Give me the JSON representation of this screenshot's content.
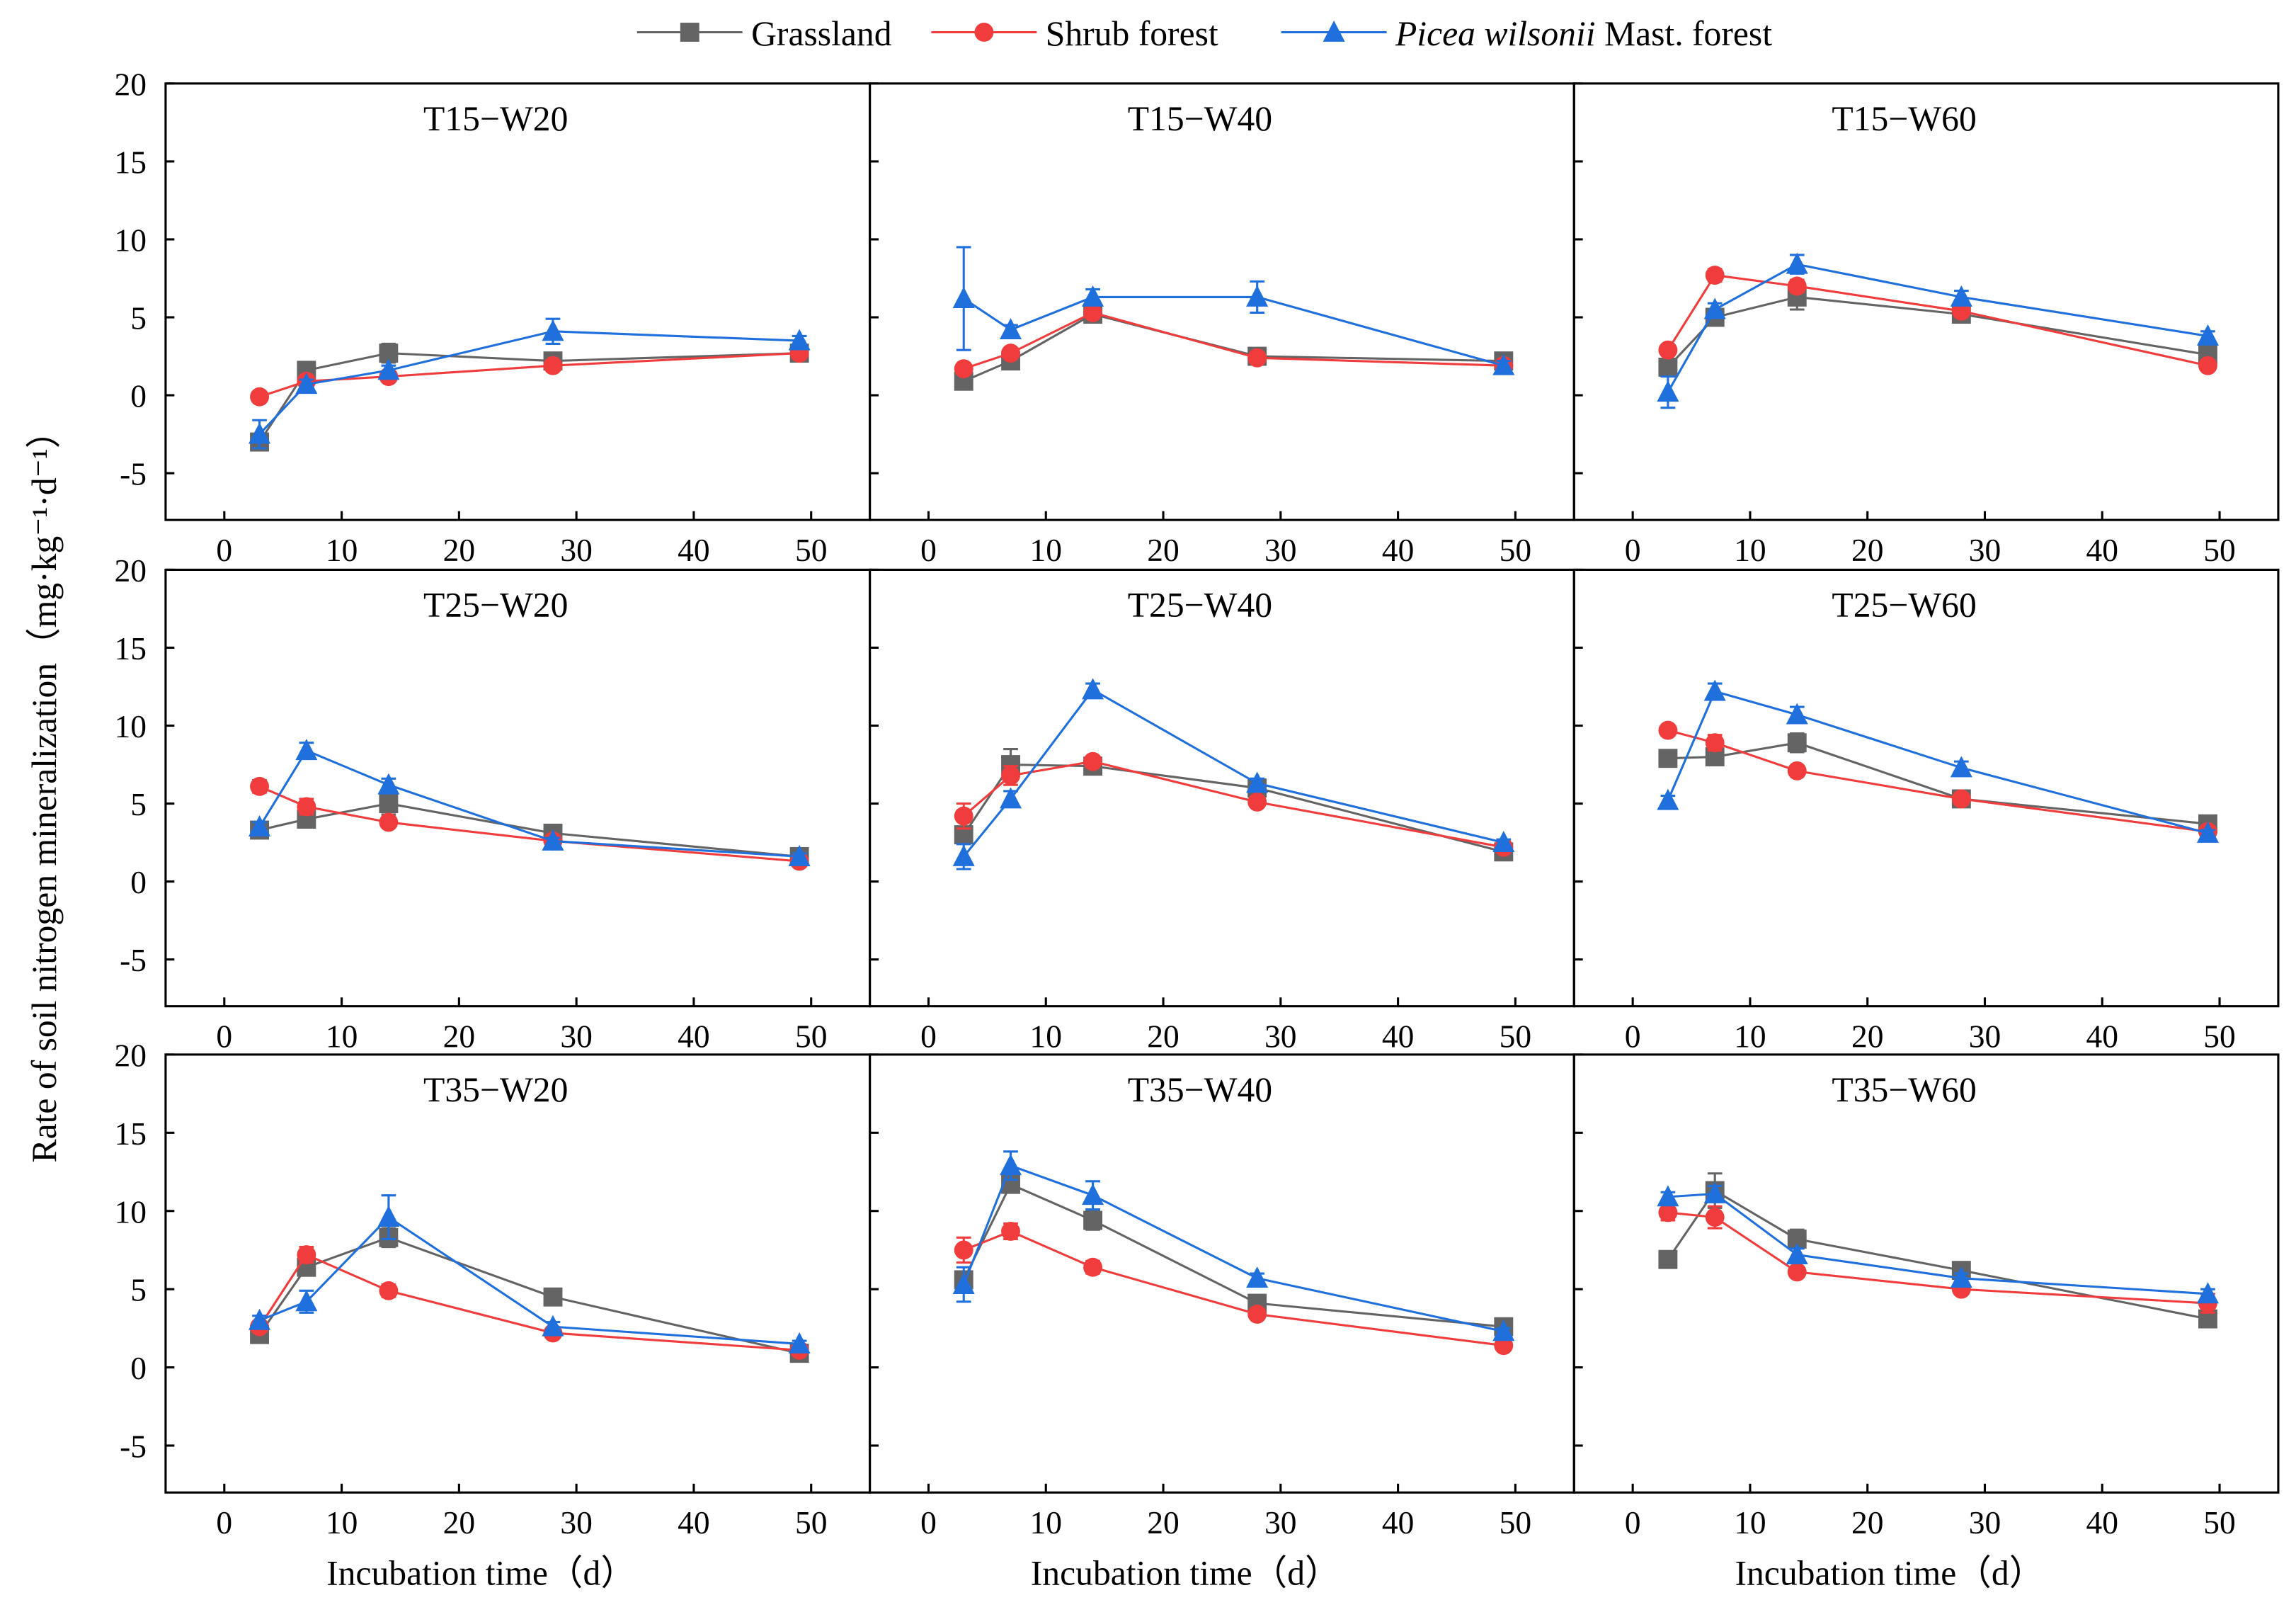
{
  "chart_data": {
    "type": "line",
    "legend": {
      "placement": "top-center",
      "entries": [
        {
          "name": "Grassland",
          "italic_part": "",
          "rest": "Grassland",
          "color": "#646464",
          "marker": "square"
        },
        {
          "name": "Shrub forest",
          "italic_part": "",
          "rest": "Shrub forest",
          "color": "#f03c3c",
          "marker": "circle"
        },
        {
          "name": "Picea wilsonii Mast. forest",
          "italic_part": "Picea wilsonii",
          "rest": " Mast. forest",
          "color": "#1f6fdc",
          "marker": "triangle"
        }
      ]
    },
    "ylabel": "Rate of soil nitrogen mineralization（mg·kg⁻¹·d⁻¹）",
    "xlabel": "Incubation time（d）",
    "xlim": [
      -5,
      55
    ],
    "ylim": [
      -8,
      20
    ],
    "xticks": [
      0,
      10,
      20,
      30,
      40,
      50
    ],
    "yticks": [
      -5,
      0,
      5,
      10,
      15,
      20
    ],
    "x": [
      3,
      7,
      14,
      28,
      49
    ],
    "panels": [
      {
        "title": "T15−W20",
        "series": [
          {
            "name": "Grassland",
            "values": [
              -3.0,
              1.6,
              2.7,
              2.2,
              2.7
            ],
            "err": [
              0.5,
              0.4,
              0.6,
              0.3,
              0.3
            ]
          },
          {
            "name": "Shrub forest",
            "values": [
              -0.1,
              0.9,
              1.2,
              1.9,
              2.7
            ],
            "err": [
              0.2,
              0.2,
              0.2,
              0.3,
              0.2
            ]
          },
          {
            "name": "Picea wilsonii Mast. forest",
            "values": [
              -2.5,
              0.7,
              1.6,
              4.1,
              3.5
            ],
            "err": [
              0.9,
              0.3,
              0.3,
              0.8,
              0.3
            ]
          }
        ]
      },
      {
        "title": "T15−W40",
        "series": [
          {
            "name": "Grassland",
            "values": [
              0.9,
              2.2,
              5.2,
              2.5,
              2.2
            ],
            "err": [
              0.2,
              0.3,
              0.3,
              0.2,
              0.3
            ]
          },
          {
            "name": "Shrub forest",
            "values": [
              1.7,
              2.7,
              5.3,
              2.4,
              1.9
            ],
            "err": [
              0.2,
              0.2,
              0.3,
              0.2,
              0.2
            ]
          },
          {
            "name": "Picea wilsonii Mast. forest",
            "values": [
              6.2,
              4.2,
              6.3,
              6.3,
              1.9
            ],
            "err": [
              3.3,
              0.3,
              0.5,
              1.0,
              0.3
            ]
          }
        ]
      },
      {
        "title": "T15−W60",
        "series": [
          {
            "name": "Grassland",
            "values": [
              1.8,
              5.0,
              6.3,
              5.2,
              2.6
            ],
            "err": [
              0.4,
              0.3,
              0.8,
              0.3,
              0.3
            ]
          },
          {
            "name": "Shrub forest",
            "values": [
              2.9,
              7.7,
              7.0,
              5.4,
              1.9
            ],
            "err": [
              0.2,
              0.4,
              0.4,
              0.3,
              0.2
            ]
          },
          {
            "name": "Picea wilsonii Mast. forest",
            "values": [
              0.2,
              5.5,
              8.4,
              6.3,
              3.8
            ],
            "err": [
              1.0,
              0.4,
              0.6,
              0.4,
              0.3
            ]
          }
        ]
      },
      {
        "title": "T25−W20",
        "series": [
          {
            "name": "Grassland",
            "values": [
              3.3,
              4.0,
              5.0,
              3.1,
              1.6
            ],
            "err": [
              0.3,
              0.3,
              0.7,
              0.3,
              0.2
            ]
          },
          {
            "name": "Shrub forest",
            "values": [
              6.1,
              4.8,
              3.8,
              2.6,
              1.3
            ],
            "err": [
              0.4,
              0.5,
              0.3,
              0.2,
              0.2
            ]
          },
          {
            "name": "Picea wilsonii Mast. forest",
            "values": [
              3.5,
              8.4,
              6.2,
              2.6,
              1.6
            ],
            "err": [
              0.3,
              0.5,
              0.4,
              0.2,
              0.2
            ]
          }
        ]
      },
      {
        "title": "T25−W40",
        "series": [
          {
            "name": "Grassland",
            "values": [
              3.0,
              7.5,
              7.4,
              6.0,
              1.9
            ],
            "err": [
              0.5,
              1.0,
              0.4,
              0.3,
              0.3
            ]
          },
          {
            "name": "Shrub forest",
            "values": [
              4.2,
              6.8,
              7.7,
              5.1,
              2.2
            ],
            "err": [
              0.8,
              0.6,
              0.3,
              0.3,
              0.3
            ]
          },
          {
            "name": "Picea wilsonii Mast. forest",
            "values": [
              1.6,
              5.3,
              12.3,
              6.3,
              2.5
            ],
            "err": [
              0.8,
              0.5,
              0.4,
              0.3,
              0.2
            ]
          }
        ]
      },
      {
        "title": "T25−W60",
        "series": [
          {
            "name": "Grassland",
            "values": [
              7.9,
              8.0,
              8.9,
              5.3,
              3.7
            ],
            "err": [
              0.5,
              0.4,
              0.6,
              0.4,
              0.3
            ]
          },
          {
            "name": "Shrub forest",
            "values": [
              9.7,
              8.9,
              7.1,
              5.3,
              3.2
            ],
            "err": [
              0.3,
              0.5,
              0.3,
              0.3,
              0.2
            ]
          },
          {
            "name": "Picea wilsonii Mast. forest",
            "values": [
              5.2,
              12.2,
              10.7,
              7.3,
              3.1
            ],
            "err": [
              0.3,
              0.5,
              0.5,
              0.4,
              0.2
            ]
          }
        ]
      },
      {
        "title": "T35−W20",
        "series": [
          {
            "name": "Grassland",
            "values": [
              2.1,
              6.4,
              8.3,
              4.5,
              0.9
            ],
            "err": [
              0.3,
              0.5,
              0.6,
              0.3,
              0.2
            ]
          },
          {
            "name": "Shrub forest",
            "values": [
              2.6,
              7.2,
              4.9,
              2.2,
              1.1
            ],
            "err": [
              0.3,
              0.5,
              0.4,
              0.2,
              0.2
            ]
          },
          {
            "name": "Picea wilsonii Mast. forest",
            "values": [
              3.0,
              4.2,
              9.6,
              2.6,
              1.5
            ],
            "err": [
              0.3,
              0.7,
              1.4,
              0.3,
              0.2
            ]
          }
        ]
      },
      {
        "title": "T35−W40",
        "series": [
          {
            "name": "Grassland",
            "values": [
              5.6,
              11.7,
              9.4,
              4.1,
              2.6
            ],
            "err": [
              0.5,
              0.4,
              0.6,
              0.3,
              0.3
            ]
          },
          {
            "name": "Shrub forest",
            "values": [
              7.5,
              8.7,
              6.4,
              3.4,
              1.4
            ],
            "err": [
              0.8,
              0.5,
              0.4,
              0.3,
              0.2
            ]
          },
          {
            "name": "Picea wilsonii Mast. forest",
            "values": [
              5.3,
              12.9,
              11.0,
              5.7,
              2.3
            ],
            "err": [
              1.1,
              0.9,
              0.9,
              0.3,
              0.2
            ]
          }
        ]
      },
      {
        "title": "T35−W60",
        "series": [
          {
            "name": "Grassland",
            "values": [
              6.9,
              11.3,
              8.2,
              6.2,
              3.1
            ],
            "err": [
              0.2,
              1.1,
              0.6,
              0.4,
              0.3
            ]
          },
          {
            "name": "Shrub forest",
            "values": [
              9.9,
              9.6,
              6.1,
              5.0,
              4.1
            ],
            "err": [
              0.5,
              0.7,
              0.3,
              0.3,
              0.6
            ]
          },
          {
            "name": "Picea wilsonii Mast. forest",
            "values": [
              10.9,
              11.1,
              7.2,
              5.7,
              4.7
            ],
            "err": [
              0.3,
              0.5,
              0.4,
              0.3,
              0.3
            ]
          }
        ]
      }
    ]
  }
}
